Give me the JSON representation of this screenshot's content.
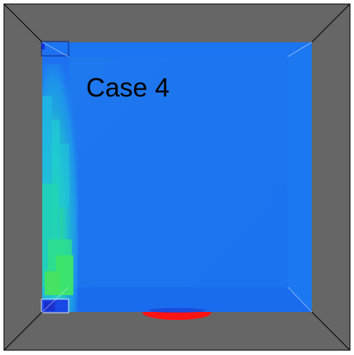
{
  "label": "Case 4",
  "colors": {
    "wall": "#666666",
    "floor_base": "#1c6ff2",
    "back_face": "#1f7ef0",
    "edge_line": "#000000",
    "inlet_red": "#ff1414",
    "high_velocity_green": "#33e25e",
    "mid_velocity_cyan": "#1fd0d8",
    "low_velocity_blue": "#1452e0"
  },
  "colormap": [
    "#1d3fd6",
    "#1f7ef0",
    "#1fb4e8",
    "#1fd8c8",
    "#3ee476",
    "#a8e02a"
  ]
}
